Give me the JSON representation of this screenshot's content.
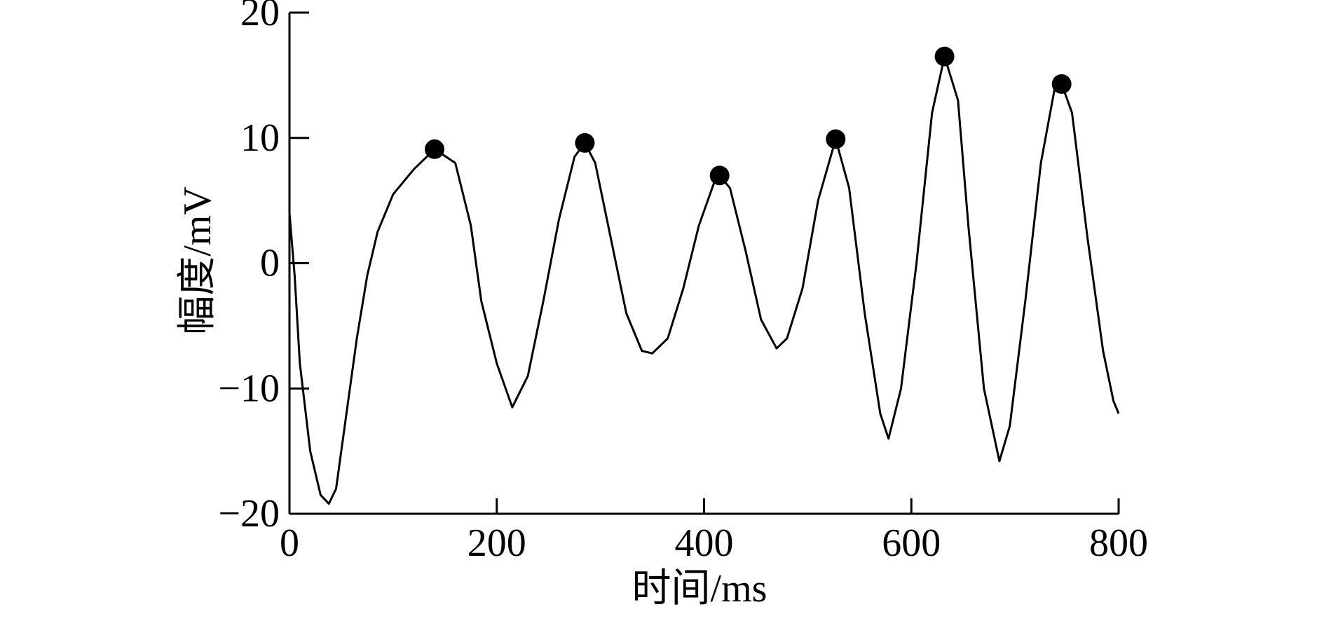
{
  "chart_data": {
    "type": "line",
    "x_label": "时间/ms",
    "y_label": "幅度/mV",
    "color": "#000000",
    "x": [
      0,
      5,
      10,
      20,
      30,
      38,
      45,
      55,
      65,
      75,
      85,
      100,
      120,
      140,
      160,
      175,
      185,
      200,
      215,
      230,
      245,
      260,
      275,
      285,
      295,
      310,
      325,
      340,
      350,
      365,
      380,
      395,
      410,
      415,
      425,
      440,
      455,
      470,
      480,
      495,
      510,
      527,
      540,
      555,
      570,
      578,
      590,
      605,
      620,
      632,
      645,
      655,
      670,
      685,
      695,
      710,
      725,
      738,
      745,
      755,
      770,
      785,
      795,
      800
    ],
    "values": [
      4,
      -1,
      -8,
      -15,
      -18.5,
      -19.2,
      -18,
      -12,
      -6,
      -1,
      2.5,
      5.5,
      7.5,
      9.1,
      8,
      3,
      -3,
      -8,
      -11.5,
      -9,
      -3,
      3.5,
      8.5,
      9.6,
      8,
      2,
      -4,
      -7,
      -7.2,
      -6,
      -2,
      3,
      6.5,
      7,
      6,
      1,
      -4.5,
      -6.8,
      -6,
      -2,
      5,
      9.9,
      6,
      -4,
      -12,
      -14,
      -10,
      0,
      12,
      16.5,
      13,
      3,
      -10,
      -15.8,
      -13,
      -3,
      8,
      13.8,
      14.3,
      12,
      2,
      -7,
      -11,
      -12
    ],
    "peaks": {
      "x": [
        140,
        285,
        415,
        527,
        632,
        745
      ],
      "values": [
        9.1,
        9.6,
        7,
        9.9,
        16.5,
        14.3
      ]
    },
    "xlim": [
      0,
      800
    ],
    "xticks": [
      0,
      200,
      400,
      600,
      800
    ],
    "ylim": [
      -20,
      20
    ],
    "yticks": [
      {
        "value": -20,
        "label": "−20"
      },
      {
        "value": -10,
        "label": "−10"
      },
      0,
      10,
      20
    ]
  }
}
